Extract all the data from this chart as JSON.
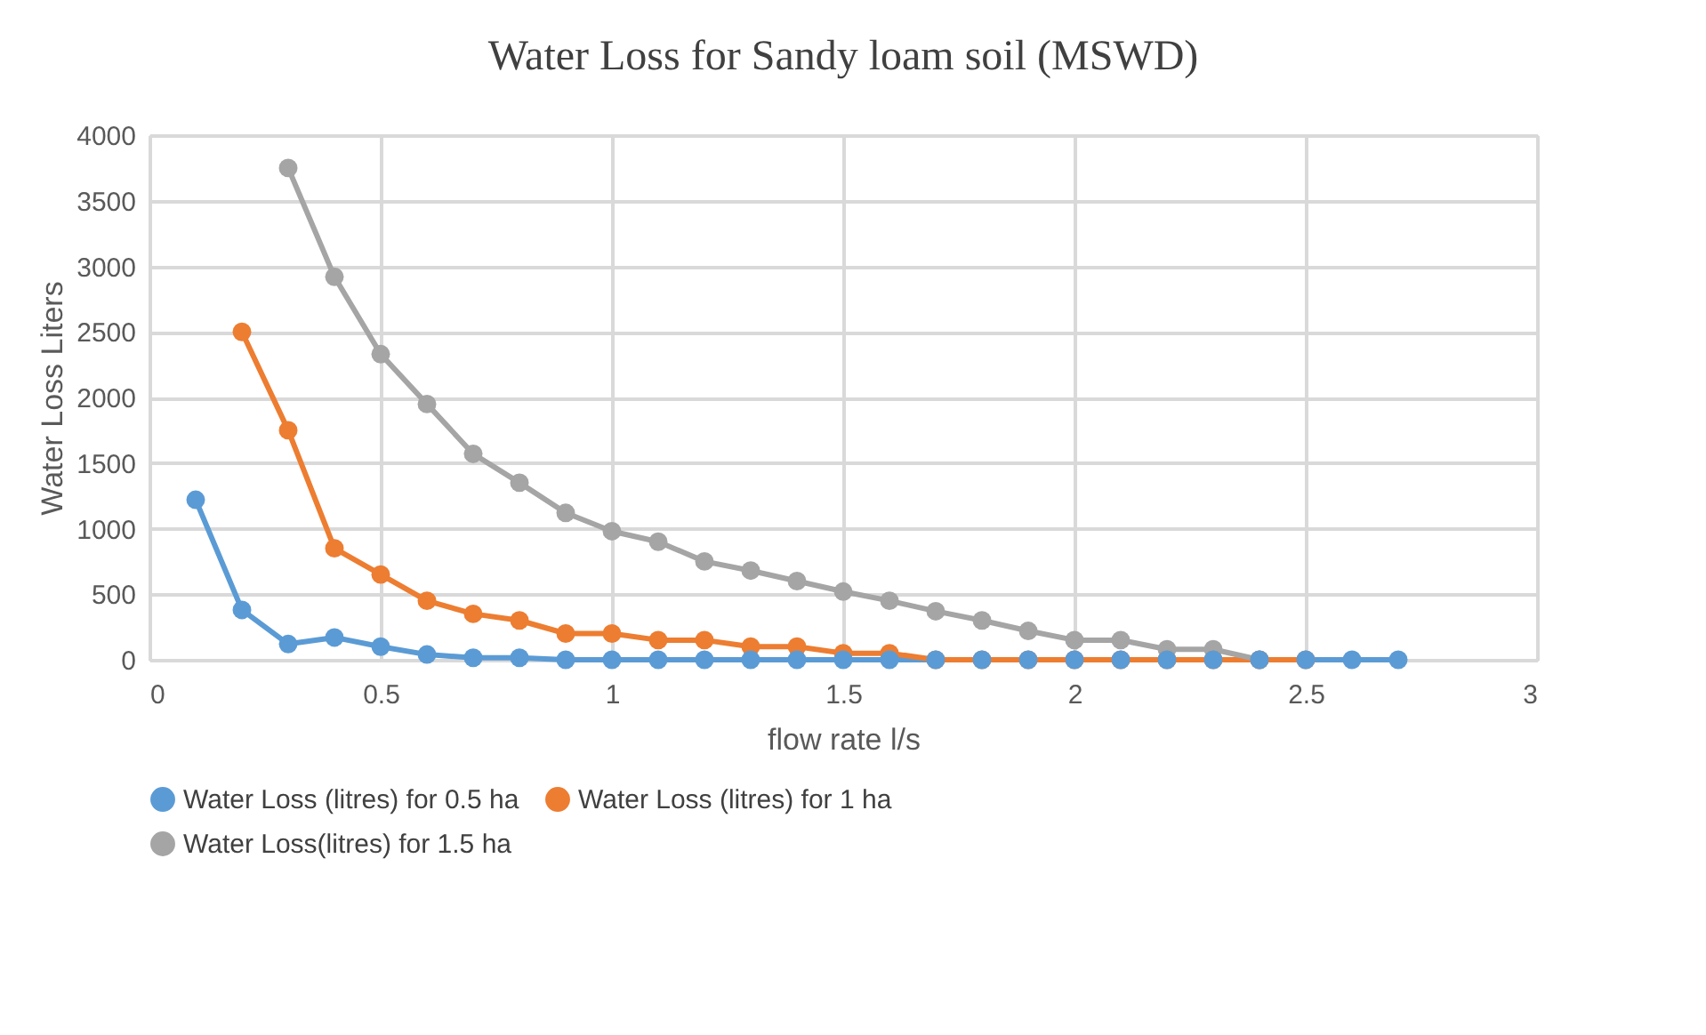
{
  "chart_data": {
    "type": "line",
    "title": "Water Loss for Sandy loam soil (MSWD)",
    "xlabel": "flow rate  l/s",
    "ylabel": "Water Loss Liters",
    "xlim": [
      0,
      3
    ],
    "xticks": [
      0,
      0.5,
      1,
      1.5,
      2,
      2.5,
      3
    ],
    "ylim": [
      0,
      4000
    ],
    "yticks": [
      0,
      500,
      1000,
      1500,
      2000,
      2500,
      3000,
      3500,
      4000
    ],
    "grid": true,
    "legend": "bottom",
    "marker": "circle",
    "line_style": "solid",
    "series": [
      {
        "name": "Water Loss (litres) for 0.5 ha",
        "color": "#5b9bd5",
        "x": [
          0.1,
          0.2,
          0.3,
          0.4,
          0.5,
          0.6,
          0.7,
          0.8,
          0.9,
          1.0,
          1.1,
          1.2,
          1.3,
          1.4,
          1.5,
          1.6,
          1.7,
          1.8,
          1.9,
          2.0,
          2.1,
          2.2,
          2.3,
          2.4,
          2.5,
          2.6,
          2.7
        ],
        "values": [
          1220,
          380,
          120,
          170,
          100,
          40,
          15,
          15,
          0,
          0,
          0,
          0,
          0,
          0,
          0,
          0,
          0,
          0,
          0,
          0,
          0,
          0,
          0,
          0,
          0,
          0,
          0
        ]
      },
      {
        "name": "Water Loss (litres) for 1 ha",
        "color": "#ed7d31",
        "x": [
          0.2,
          0.3,
          0.4,
          0.5,
          0.6,
          0.7,
          0.8,
          0.9,
          1.0,
          1.1,
          1.2,
          1.3,
          1.4,
          1.5,
          1.6,
          1.7,
          1.8,
          1.9,
          2.0,
          2.1,
          2.2,
          2.3,
          2.4,
          2.5
        ],
        "values": [
          2500,
          1750,
          850,
          650,
          450,
          350,
          300,
          200,
          200,
          150,
          150,
          100,
          100,
          50,
          50,
          0,
          0,
          0,
          0,
          0,
          0,
          0,
          0,
          0
        ]
      },
      {
        "name": "Water Loss(litres) for 1.5 ha",
        "color": "#a5a5a5",
        "x": [
          0.3,
          0.4,
          0.5,
          0.6,
          0.7,
          0.8,
          0.9,
          1.0,
          1.1,
          1.2,
          1.3,
          1.4,
          1.5,
          1.6,
          1.7,
          1.8,
          1.9,
          2.0,
          2.1,
          2.2,
          2.3,
          2.4
        ],
        "values": [
          3750,
          2920,
          2330,
          1950,
          1570,
          1350,
          1120,
          980,
          900,
          750,
          680,
          600,
          520,
          450,
          370,
          300,
          220,
          150,
          150,
          80,
          80,
          0
        ]
      }
    ]
  }
}
